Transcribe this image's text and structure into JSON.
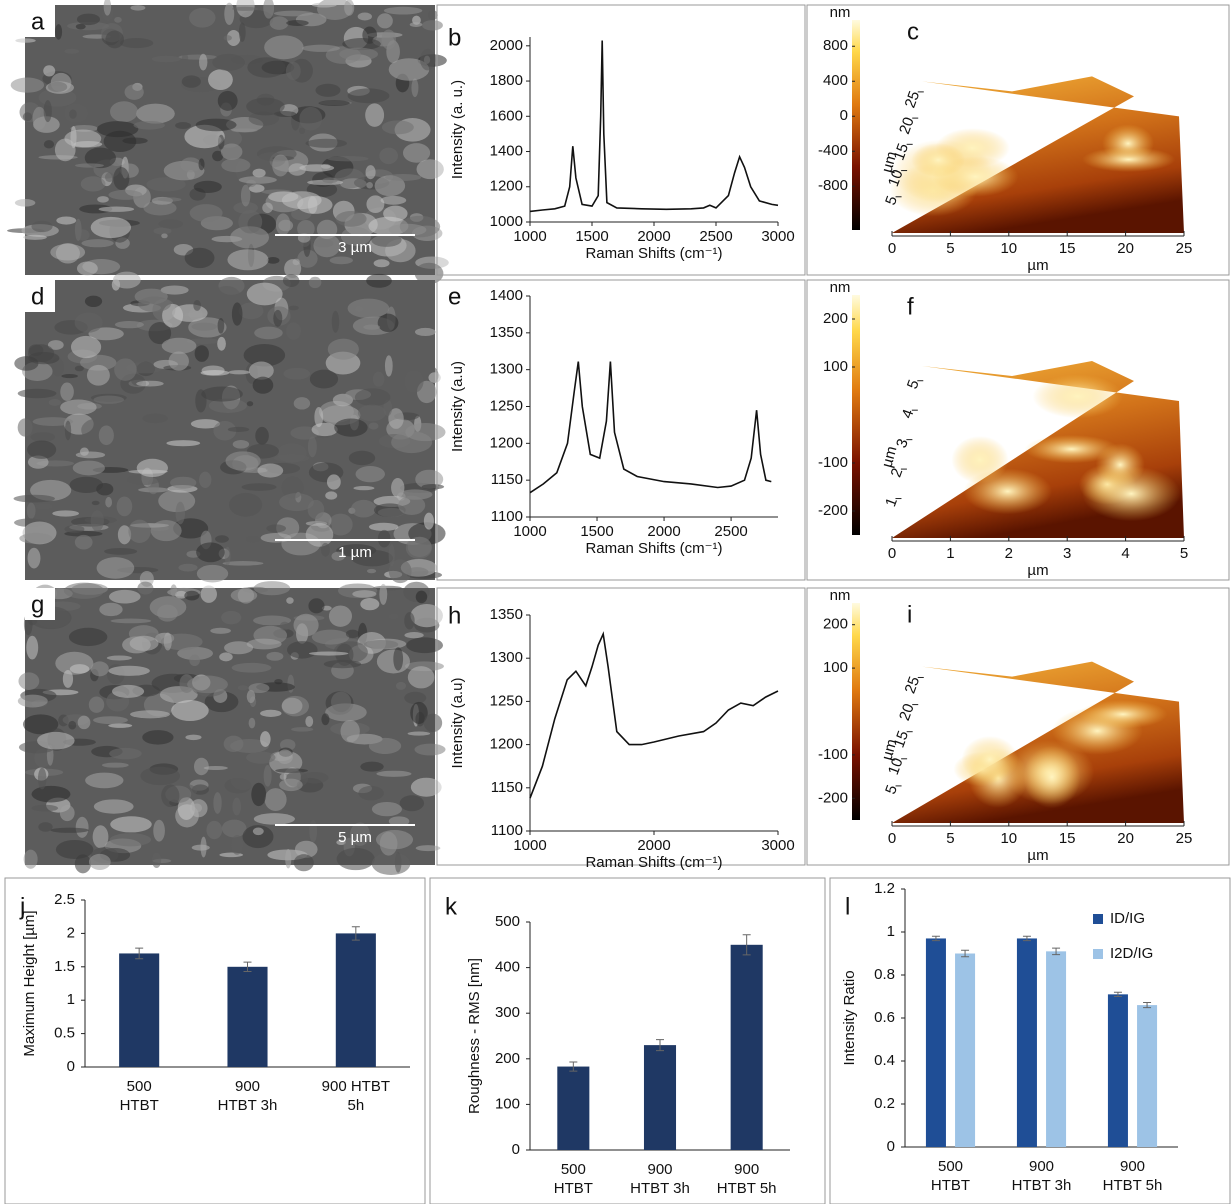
{
  "chart_data": [
    {
      "type": "image",
      "label": "a",
      "scale_bar": "3 µm"
    },
    {
      "type": "line",
      "label": "b",
      "x": [
        1000,
        1100,
        1200,
        1280,
        1320,
        1345,
        1370,
        1420,
        1500,
        1550,
        1570,
        1582,
        1595,
        1620,
        1700,
        1900,
        2100,
        2300,
        2400,
        2450,
        2500,
        2600,
        2650,
        2690,
        2730,
        2780,
        2850,
        2950,
        3000
      ],
      "values": [
        1060,
        1068,
        1075,
        1090,
        1200,
        1430,
        1250,
        1100,
        1090,
        1150,
        1600,
        2030,
        1500,
        1110,
        1080,
        1075,
        1072,
        1075,
        1080,
        1095,
        1080,
        1150,
        1280,
        1370,
        1310,
        1200,
        1120,
        1100,
        1095
      ],
      "color": "#111111",
      "xlim": [
        1000,
        3000
      ],
      "xticks": [
        1000,
        1500,
        2000,
        2500,
        3000
      ],
      "ylim": [
        1000,
        2050
      ],
      "yticks": [
        1000,
        1200,
        1400,
        1600,
        1800,
        2000
      ],
      "x_label": "Raman Shifts (cm⁻¹)",
      "y_label": "Intensity (a. u.)"
    },
    {
      "type": "surface",
      "label": "c",
      "colorbar_label": "nm",
      "clim": [
        -1300,
        1100
      ],
      "cticks": [
        800,
        400,
        0,
        -400,
        -800
      ],
      "xlim": [
        0,
        25
      ],
      "xticks": [
        0,
        5,
        10,
        15,
        20,
        25
      ],
      "x_label": "µm",
      "ylim": [
        0,
        27
      ],
      "yticks": [
        5,
        10,
        15,
        20,
        25
      ],
      "y_label": "µm"
    },
    {
      "type": "image",
      "label": "d",
      "scale_bar": "1 µm"
    },
    {
      "type": "line",
      "label": "e",
      "x": [
        1000,
        1100,
        1200,
        1280,
        1330,
        1360,
        1390,
        1450,
        1520,
        1570,
        1600,
        1630,
        1700,
        1800,
        2000,
        2200,
        2400,
        2500,
        2600,
        2650,
        2690,
        2720,
        2760,
        2800
      ],
      "values": [
        1133,
        1145,
        1160,
        1200,
        1270,
        1311,
        1250,
        1185,
        1180,
        1230,
        1311,
        1215,
        1165,
        1155,
        1148,
        1145,
        1140,
        1142,
        1150,
        1180,
        1245,
        1185,
        1150,
        1148
      ],
      "color": "#111111",
      "xlim": [
        1000,
        2850
      ],
      "xticks": [
        1000,
        1500,
        2000,
        2500
      ],
      "ylim": [
        1100,
        1400
      ],
      "yticks": [
        1100,
        1150,
        1200,
        1250,
        1300,
        1350,
        1400
      ],
      "x_label": "Raman Shifts (cm⁻¹)",
      "y_label": "Intensity (a.u)"
    },
    {
      "type": "surface",
      "label": "f",
      "colorbar_label": "nm",
      "clim": [
        -250,
        250
      ],
      "cticks": [
        200,
        100,
        -100,
        -200
      ],
      "xlim": [
        0,
        5
      ],
      "xticks": [
        0,
        1,
        2,
        3,
        4,
        5
      ],
      "x_label": "µm",
      "ylim": [
        0,
        5.5
      ],
      "yticks": [
        1,
        2,
        3,
        4,
        5
      ],
      "y_label": "µm"
    },
    {
      "type": "image",
      "label": "g",
      "scale_bar": "5 µm"
    },
    {
      "type": "line",
      "label": "h",
      "x": [
        1000,
        1100,
        1200,
        1300,
        1370,
        1450,
        1500,
        1550,
        1590,
        1630,
        1700,
        1800,
        1900,
        2000,
        2200,
        2400,
        2500,
        2600,
        2700,
        2800,
        2900,
        3000
      ],
      "values": [
        1138,
        1175,
        1230,
        1275,
        1285,
        1268,
        1290,
        1315,
        1328,
        1290,
        1215,
        1200,
        1200,
        1203,
        1210,
        1215,
        1225,
        1240,
        1248,
        1245,
        1255,
        1262
      ],
      "color": "#111111",
      "xlim": [
        1000,
        3000
      ],
      "xticks": [
        1000,
        2000,
        3000
      ],
      "ylim": [
        1100,
        1350
      ],
      "yticks": [
        1100,
        1150,
        1200,
        1250,
        1300,
        1350
      ],
      "x_label": "Raman Shifts (cm⁻¹)",
      "y_label": "Intensity (a.u)"
    },
    {
      "type": "surface",
      "label": "i",
      "colorbar_label": "nm",
      "clim": [
        -250,
        250
      ],
      "cticks": [
        200,
        100,
        -100,
        -200
      ],
      "xlim": [
        0,
        25
      ],
      "xticks": [
        0,
        5,
        10,
        15,
        20,
        25
      ],
      "x_label": "µm",
      "ylim": [
        0,
        27
      ],
      "yticks": [
        5,
        10,
        15,
        20,
        25
      ],
      "y_label": "µm"
    },
    {
      "type": "bar",
      "label": "j",
      "categories": [
        [
          "500",
          "HTBT"
        ],
        [
          "900",
          "HTBT 3h"
        ],
        [
          "900 HTBT",
          "5h"
        ]
      ],
      "series": [
        {
          "color": "#1f3864",
          "values": [
            1.7,
            1.5,
            2.0
          ],
          "errors": [
            0.08,
            0.07,
            0.1
          ]
        }
      ],
      "ylim": [
        0,
        2.5
      ],
      "yticks": [
        0,
        0.5,
        1,
        1.5,
        2,
        2.5
      ],
      "y_label": "Maximum Height [µm]"
    },
    {
      "type": "bar",
      "label": "k",
      "categories": [
        [
          "500",
          "HTBT"
        ],
        [
          "900",
          "HTBT 3h"
        ],
        [
          "900",
          "HTBT 5h"
        ]
      ],
      "series": [
        {
          "color": "#1f3864",
          "values": [
            183,
            230,
            450
          ],
          "errors": [
            10,
            12,
            22
          ]
        }
      ],
      "ylim": [
        0,
        500
      ],
      "yticks": [
        0,
        100,
        200,
        300,
        400,
        500
      ],
      "y_label": "Roughness - RMS [nm]"
    },
    {
      "type": "bar",
      "label": "l",
      "categories": [
        [
          "500",
          "HTBT"
        ],
        [
          "900",
          "HTBT 3h"
        ],
        [
          "900",
          "HTBT 5h"
        ]
      ],
      "series": [
        {
          "name": "ID/IG",
          "color": "#1f4e96",
          "values": [
            0.97,
            0.97,
            0.71
          ],
          "errors": [
            0.01,
            0.01,
            0.01
          ]
        },
        {
          "name": "I2D/IG",
          "color": "#9dc3e6",
          "values": [
            0.9,
            0.91,
            0.66
          ],
          "errors": [
            0.015,
            0.015,
            0.012
          ]
        }
      ],
      "ylim": [
        0,
        1.2
      ],
      "yticks": [
        0,
        0.2,
        0.4,
        0.6,
        0.8,
        1,
        1.2
      ],
      "y_label": "Intensity Ratio"
    }
  ]
}
